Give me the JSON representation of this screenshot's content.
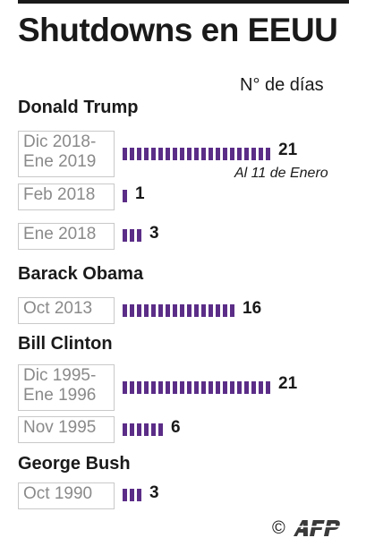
{
  "title": "Shutdowns en EEUU",
  "unit_label": "N° de días",
  "annotation": "Al 11 de Enero",
  "credit": {
    "symbol": "©",
    "logo_text": "AFP"
  },
  "colors": {
    "bar": "#5b2d87",
    "text": "#1a1a1a",
    "period_text": "#8a8a8a",
    "period_border": "#c9c9c9",
    "logo": "#3a3a3a"
  },
  "presidents": [
    "Donald Trump",
    "Barack Obama",
    "Bill Clinton",
    "George Bush"
  ],
  "chart_data": {
    "type": "bar",
    "orientation": "horizontal",
    "title": "Shutdowns en EEUU",
    "unit": "N° de días",
    "groups": [
      {
        "president": "Donald Trump",
        "shutdowns": [
          {
            "period": "Dic 2018-\nEne 2019",
            "days": 21,
            "note": "Al 11 de Enero"
          },
          {
            "period": "Feb 2018",
            "days": 1
          },
          {
            "period": "Ene 2018",
            "days": 3
          }
        ]
      },
      {
        "president": "Barack Obama",
        "shutdowns": [
          {
            "period": "Oct 2013",
            "days": 16
          }
        ]
      },
      {
        "president": "Bill Clinton",
        "shutdowns": [
          {
            "period": "Dic 1995-\nEne 1996",
            "days": 21
          },
          {
            "period": "Nov 1995",
            "days": 6
          }
        ]
      },
      {
        "president": "George Bush",
        "shutdowns": [
          {
            "period": "Oct 1990",
            "days": 3
          }
        ]
      }
    ]
  }
}
